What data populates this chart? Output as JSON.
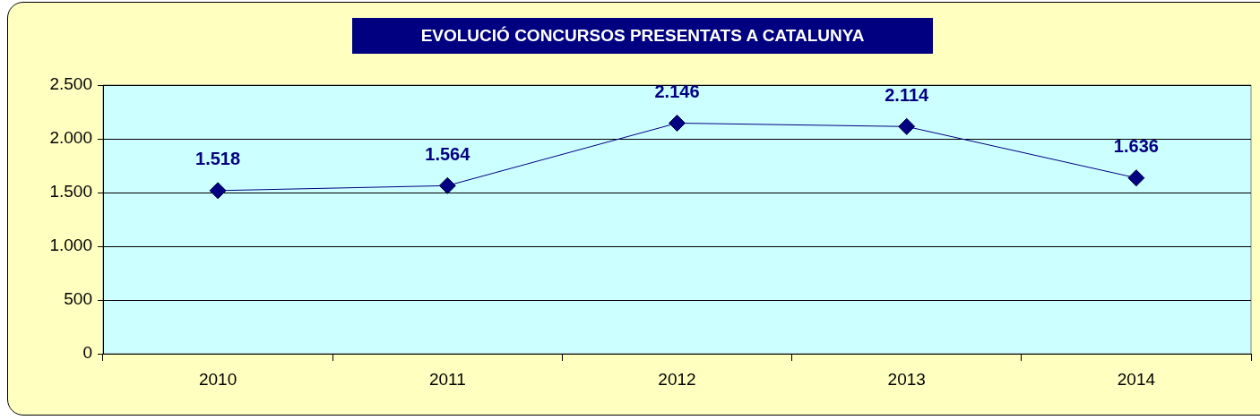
{
  "chart_data": {
    "type": "line",
    "title": "EVOLUCIÓ CONCURSOS PRESENTATS A CATALUNYA",
    "categories": [
      "2010",
      "2011",
      "2012",
      "2013",
      "2014"
    ],
    "series": [
      {
        "color": "#000080",
        "values": [
          1518,
          1564,
          2146,
          2114,
          1636
        ],
        "value_labels": [
          "1.518",
          "1.564",
          "2.146",
          "2.114",
          "1.636"
        ]
      }
    ],
    "ylim": [
      0,
      2500
    ],
    "yticks": [
      {
        "value": 0,
        "label": "0"
      },
      {
        "value": 500,
        "label": "500"
      },
      {
        "value": 1000,
        "label": "1.000"
      },
      {
        "value": 1500,
        "label": "1.500"
      },
      {
        "value": 2000,
        "label": "2.000"
      },
      {
        "value": 2500,
        "label": "2.500"
      }
    ],
    "grid": "y",
    "legend": false,
    "marker": "diamond",
    "line_style": "solid"
  }
}
